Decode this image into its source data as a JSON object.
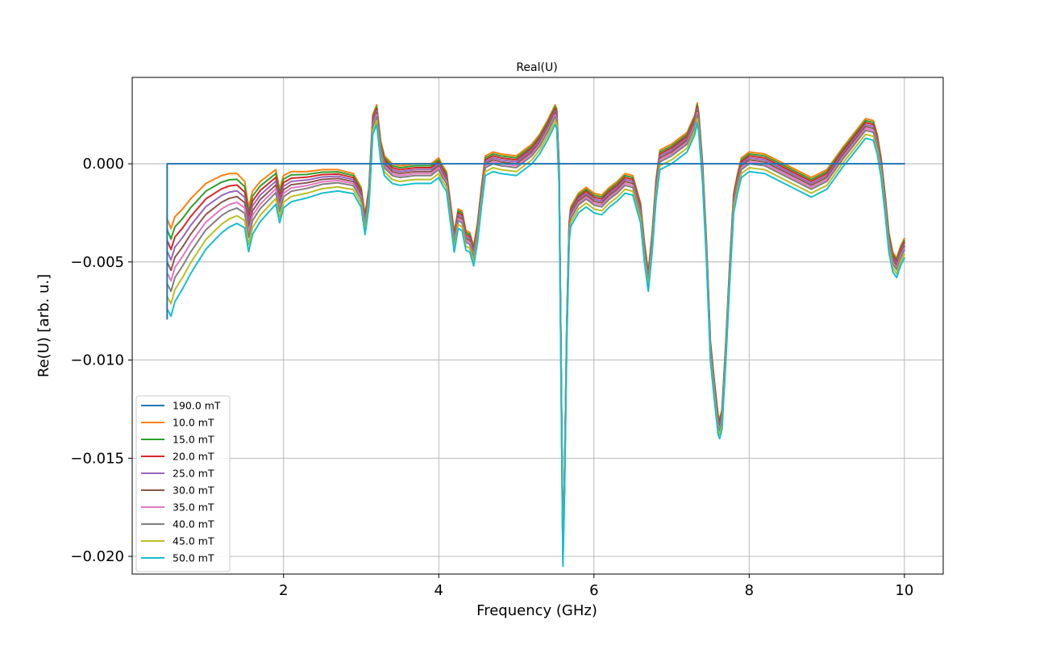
{
  "chart_data": {
    "type": "line",
    "title": "Real(U)",
    "xlabel": "Frequency (GHz)",
    "ylabel": "Re(U) [arb. u.]",
    "xlim": [
      0.05,
      10.5
    ],
    "ylim": [
      -0.0209,
      0.0044
    ],
    "xticks": [
      2,
      4,
      6,
      8,
      10
    ],
    "xtick_labels": [
      "2",
      "4",
      "6",
      "8",
      "10"
    ],
    "yticks": [
      0.0,
      -0.005,
      -0.01,
      -0.015,
      -0.02
    ],
    "ytick_labels": [
      "0.000",
      "−0.005",
      "−0.010",
      "−0.015",
      "−0.020"
    ],
    "grid": true,
    "legend_position": "lower-left",
    "series_colors": [
      "#1f77b4",
      "#ff7f0e",
      "#2ca02c",
      "#d62728",
      "#9467bd",
      "#8c564b",
      "#e377c2",
      "#7f7f7f",
      "#bcbd22",
      "#17becf"
    ],
    "reference_series": {
      "name": "190.0 mT",
      "x": [
        0.5,
        0.5,
        10.0
      ],
      "y": [
        -0.0079,
        0.0,
        0.0
      ]
    },
    "field_series_names": [
      "10.0 mT",
      "15.0 mT",
      "20.0 mT",
      "25.0 mT",
      "30.0 mT",
      "35.0 mT",
      "40.0 mT",
      "45.0 mT",
      "50.0 mT"
    ],
    "field_series_offsets": [
      0.0,
      -0.0001,
      -0.0002,
      -0.0003,
      -0.0004,
      -0.0005,
      -0.0006,
      -0.0008,
      -0.001
    ],
    "base_curve": {
      "x": [
        0.5,
        0.55,
        0.6,
        0.7,
        0.8,
        0.9,
        1.0,
        1.1,
        1.2,
        1.3,
        1.4,
        1.5,
        1.55,
        1.6,
        1.7,
        1.8,
        1.9,
        1.95,
        2.0,
        2.1,
        2.3,
        2.5,
        2.7,
        2.9,
        3.0,
        3.05,
        3.1,
        3.15,
        3.2,
        3.25,
        3.3,
        3.4,
        3.5,
        3.7,
        3.9,
        4.0,
        4.05,
        4.1,
        4.2,
        4.25,
        4.3,
        4.35,
        4.4,
        4.45,
        4.5,
        4.55,
        4.6,
        4.7,
        4.8,
        5.0,
        5.2,
        5.3,
        5.4,
        5.5,
        5.52,
        5.55,
        5.57,
        5.6,
        5.62,
        5.65,
        5.68,
        5.7,
        5.8,
        5.9,
        6.0,
        6.1,
        6.2,
        6.3,
        6.4,
        6.5,
        6.6,
        6.65,
        6.7,
        6.75,
        6.8,
        6.85,
        6.9,
        7.0,
        7.1,
        7.2,
        7.3,
        7.33,
        7.35,
        7.4,
        7.45,
        7.5,
        7.55,
        7.6,
        7.62,
        7.65,
        7.7,
        7.75,
        7.8,
        7.85,
        7.9,
        8.0,
        8.2,
        8.4,
        8.6,
        8.8,
        9.0,
        9.2,
        9.4,
        9.5,
        9.6,
        9.65,
        9.7,
        9.75,
        9.8,
        9.85,
        9.9,
        9.95,
        10.0
      ],
      "y": [
        -0.0028,
        -0.0033,
        -0.0027,
        -0.0023,
        -0.0018,
        -0.0014,
        -0.001,
        -0.0008,
        -0.0006,
        -0.0005,
        -0.0005,
        -0.0009,
        -0.0022,
        -0.0014,
        -0.0009,
        -0.0006,
        -0.0003,
        -0.0013,
        -0.0006,
        -0.0004,
        -0.0004,
        -0.0003,
        -0.0003,
        -0.0005,
        -0.0012,
        -0.0026,
        -0.0012,
        0.0025,
        0.003,
        0.0012,
        0.0004,
        0.0,
        -0.0001,
        0.0,
        0.0,
        0.0003,
        -0.0001,
        -0.0004,
        -0.0035,
        -0.0023,
        -0.0024,
        -0.0034,
        -0.0035,
        -0.0042,
        -0.003,
        -0.0012,
        0.0004,
        0.0006,
        0.0005,
        0.0004,
        0.001,
        0.0015,
        0.0022,
        0.003,
        0.0028,
        0.0,
        -0.0075,
        -0.0195,
        -0.016,
        -0.008,
        -0.003,
        -0.0022,
        -0.0015,
        -0.0012,
        -0.0015,
        -0.0016,
        -0.0012,
        -0.0009,
        -0.0005,
        -0.0006,
        -0.002,
        -0.004,
        -0.0055,
        -0.0035,
        -0.0008,
        0.0007,
        0.0008,
        0.001,
        0.0013,
        0.0016,
        0.0025,
        0.0031,
        0.0026,
        0.0,
        -0.004,
        -0.009,
        -0.011,
        -0.0128,
        -0.013,
        -0.0125,
        -0.009,
        -0.005,
        -0.0015,
        -0.0005,
        0.0003,
        0.0006,
        0.0005,
        0.0001,
        -0.0003,
        -0.0007,
        -0.0003,
        0.0008,
        0.0018,
        0.0023,
        0.0022,
        0.0015,
        0.0003,
        -0.0015,
        -0.0035,
        -0.0045,
        -0.0048,
        -0.0042,
        -0.0038
      ]
    },
    "low_frequency_spread": {
      "x_start": 0.5,
      "x_end": 3.1,
      "extra_drop_per_series": -0.00045
    },
    "legend_entries": [
      "190.0 mT",
      "10.0 mT",
      "15.0 mT",
      "20.0 mT",
      "25.0 mT",
      "30.0 mT",
      "35.0 mT",
      "40.0 mT",
      "45.0 mT",
      "50.0 mT"
    ]
  }
}
